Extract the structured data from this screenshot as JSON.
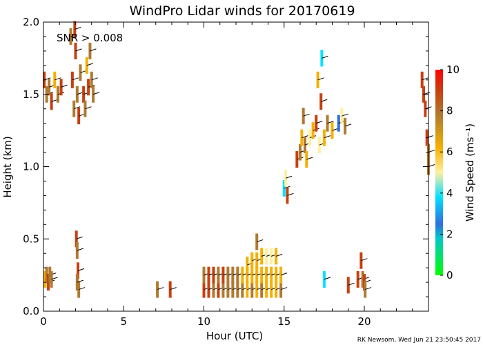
{
  "chart_data": {
    "type": "scatter",
    "title": "WindPro Lidar winds for 20170619",
    "xlabel": "Hour (UTC)",
    "ylabel": "Height (km)",
    "xlim": [
      0,
      24
    ],
    "ylim": [
      0,
      2
    ],
    "x_ticks": [
      0,
      5,
      10,
      15,
      20
    ],
    "x_tick_labels": [
      "0",
      "5",
      "10",
      "15",
      "20"
    ],
    "y_ticks": [
      0,
      0.5,
      1,
      1.5,
      2
    ],
    "y_tick_labels": [
      "0.0",
      "0.5",
      "1.0",
      "1.5",
      "2.0"
    ],
    "annotation": "SNR > 0.008",
    "footer": "RK Newsom, Wed Jun 21 23:50:45 2017",
    "colorbar": {
      "label": "Wind Speed (ms⁻¹)",
      "range": [
        0,
        10
      ],
      "ticks": [
        0,
        2,
        4,
        6,
        8,
        10
      ],
      "tick_labels": [
        "0",
        "2",
        "4",
        "6",
        "8",
        "10"
      ],
      "colors": [
        "#00ff00",
        "#00c8c8",
        "#2f6fe0",
        "#00e0ff",
        "#fff0a0",
        "#f5b000",
        "#b07a30",
        "#c84010",
        "#ff0000"
      ]
    },
    "series": [
      {
        "name": "wind_speed",
        "comment": "approximate speed (m/s) by hour and height (km)"
      }
    ],
    "points": [
      [
        0.1,
        0.22,
        6
      ],
      [
        0.2,
        0.25,
        8
      ],
      [
        0.3,
        0.2,
        9
      ],
      [
        0.4,
        0.25,
        7
      ],
      [
        0.5,
        0.22,
        8
      ],
      [
        0.05,
        1.6,
        9
      ],
      [
        0.2,
        1.5,
        7
      ],
      [
        0.35,
        1.55,
        8
      ],
      [
        0.5,
        1.45,
        9
      ],
      [
        0.7,
        1.6,
        6
      ],
      [
        0.9,
        1.5,
        8
      ],
      [
        1.1,
        1.55,
        9
      ],
      [
        1.7,
        1.9,
        8
      ],
      [
        1.8,
        1.6,
        9
      ],
      [
        1.9,
        1.4,
        8
      ],
      [
        2.0,
        1.8,
        9
      ],
      [
        2.1,
        1.5,
        7
      ],
      [
        2.2,
        1.35,
        9
      ],
      [
        2.3,
        1.65,
        8
      ],
      [
        2.5,
        1.5,
        9
      ],
      [
        2.6,
        1.4,
        8
      ],
      [
        2.7,
        1.7,
        6
      ],
      [
        2.8,
        1.55,
        9
      ],
      [
        2.9,
        1.8,
        8
      ],
      [
        3.0,
        1.6,
        7
      ],
      [
        3.1,
        1.5,
        8
      ],
      [
        1.95,
        1.95,
        9
      ],
      [
        2.05,
        0.5,
        9
      ],
      [
        2.1,
        0.42,
        8
      ],
      [
        2.15,
        0.28,
        9
      ],
      [
        2.2,
        0.15,
        7
      ],
      [
        2.1,
        0.2,
        8
      ],
      [
        7.1,
        0.15,
        8
      ],
      [
        7.9,
        0.15,
        9
      ],
      [
        10.0,
        0.15,
        9
      ],
      [
        10.0,
        0.25,
        8
      ],
      [
        10.3,
        0.15,
        9
      ],
      [
        10.3,
        0.25,
        9
      ],
      [
        10.6,
        0.15,
        8
      ],
      [
        10.6,
        0.25,
        9
      ],
      [
        10.9,
        0.15,
        9
      ],
      [
        10.9,
        0.25,
        8
      ],
      [
        11.2,
        0.15,
        8
      ],
      [
        11.2,
        0.25,
        9
      ],
      [
        11.5,
        0.15,
        8
      ],
      [
        11.5,
        0.25,
        7
      ],
      [
        11.8,
        0.15,
        7
      ],
      [
        11.8,
        0.25,
        8
      ],
      [
        12.1,
        0.15,
        8
      ],
      [
        12.1,
        0.25,
        7
      ],
      [
        12.4,
        0.15,
        7
      ],
      [
        12.4,
        0.25,
        6
      ],
      [
        12.7,
        0.15,
        6
      ],
      [
        12.7,
        0.25,
        6
      ],
      [
        12.7,
        0.32,
        6
      ],
      [
        13.0,
        0.15,
        7
      ],
      [
        13.0,
        0.25,
        6
      ],
      [
        13.0,
        0.35,
        6
      ],
      [
        13.3,
        0.15,
        6
      ],
      [
        13.3,
        0.25,
        6
      ],
      [
        13.3,
        0.35,
        6
      ],
      [
        13.3,
        0.48,
        7
      ],
      [
        13.6,
        0.15,
        7
      ],
      [
        13.6,
        0.25,
        6
      ],
      [
        13.6,
        0.38,
        6
      ],
      [
        13.9,
        0.15,
        6
      ],
      [
        13.9,
        0.25,
        6
      ],
      [
        13.9,
        0.38,
        5
      ],
      [
        14.2,
        0.15,
        6
      ],
      [
        14.2,
        0.25,
        6
      ],
      [
        14.2,
        0.38,
        5
      ],
      [
        14.5,
        0.15,
        6
      ],
      [
        14.5,
        0.25,
        6
      ],
      [
        14.5,
        0.38,
        6
      ],
      [
        14.8,
        0.15,
        7
      ],
      [
        14.8,
        0.25,
        6
      ],
      [
        15.0,
        0.85,
        4
      ],
      [
        15.1,
        0.92,
        5
      ],
      [
        15.2,
        0.8,
        9
      ],
      [
        15.8,
        1.05,
        9
      ],
      [
        16.0,
        1.1,
        7
      ],
      [
        16.1,
        1.2,
        6
      ],
      [
        16.2,
        1.35,
        7
      ],
      [
        16.3,
        1.15,
        8
      ],
      [
        16.4,
        1.05,
        6
      ],
      [
        16.6,
        1.2,
        5
      ],
      [
        16.8,
        1.25,
        6
      ],
      [
        17.0,
        1.3,
        9
      ],
      [
        17.1,
        1.6,
        6
      ],
      [
        17.2,
        1.15,
        5
      ],
      [
        17.3,
        1.45,
        9
      ],
      [
        17.35,
        1.75,
        4
      ],
      [
        17.5,
        1.2,
        6
      ],
      [
        17.7,
        1.3,
        8
      ],
      [
        18.0,
        1.25,
        6
      ],
      [
        18.4,
        1.3,
        3
      ],
      [
        18.6,
        1.35,
        5
      ],
      [
        18.8,
        1.28,
        7
      ],
      [
        17.5,
        0.22,
        4
      ],
      [
        19.0,
        0.18,
        9
      ],
      [
        19.6,
        0.22,
        9
      ],
      [
        19.8,
        0.35,
        9
      ],
      [
        19.9,
        0.22,
        8
      ],
      [
        20.0,
        0.2,
        9
      ],
      [
        20.05,
        0.15,
        7
      ],
      [
        23.6,
        1.6,
        9
      ],
      [
        23.7,
        1.5,
        9
      ],
      [
        23.8,
        1.4,
        9
      ],
      [
        23.9,
        1.2,
        9
      ],
      [
        24.0,
        1.1,
        8
      ],
      [
        24.0,
        1.0,
        7
      ]
    ]
  }
}
